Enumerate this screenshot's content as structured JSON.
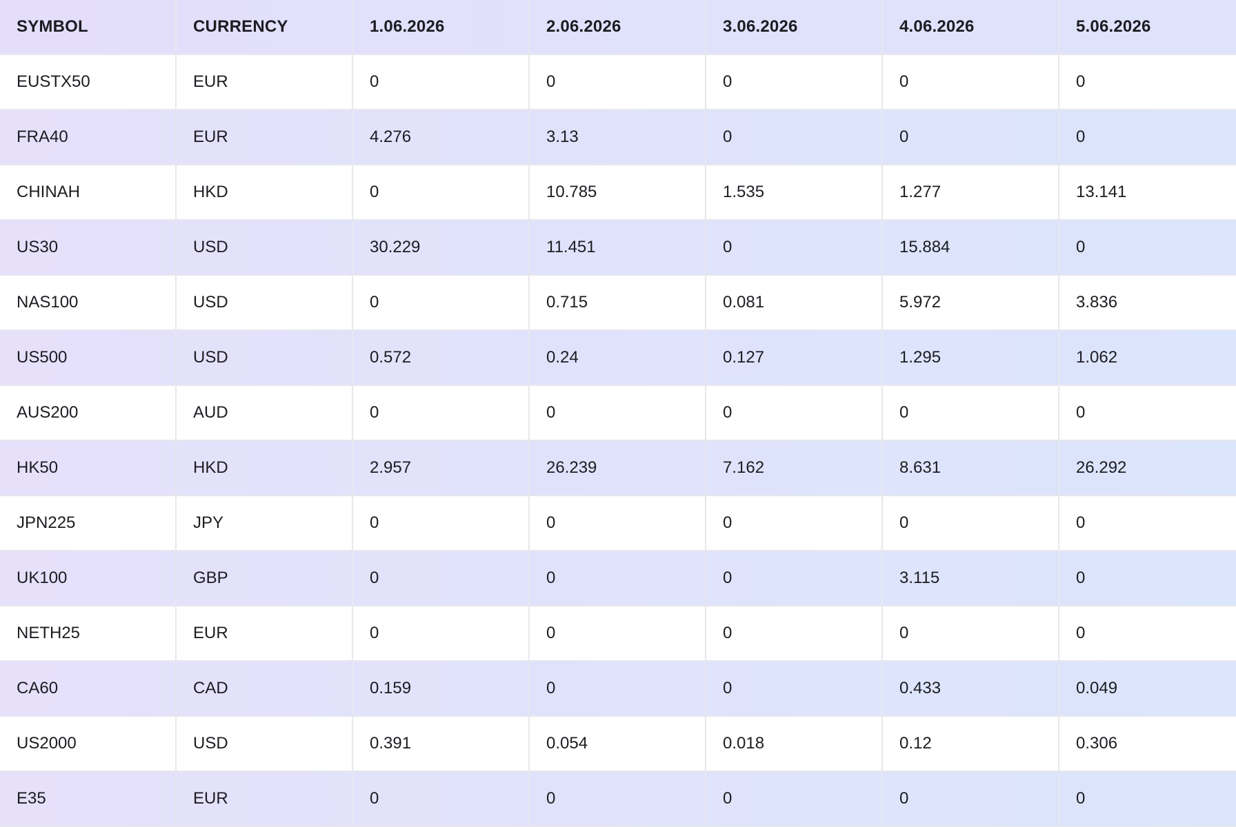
{
  "table": {
    "headers": [
      "SYMBOL",
      "CURRENCY",
      "1.06.2026",
      "2.06.2026",
      "3.06.2026",
      "4.06.2026",
      "5.06.2026"
    ],
    "rows": [
      [
        "EUSTX50",
        "EUR",
        "0",
        "0",
        "0",
        "0",
        "0"
      ],
      [
        "FRA40",
        "EUR",
        "4.276",
        "3.13",
        "0",
        "0",
        "0"
      ],
      [
        "CHINAH",
        "HKD",
        "0",
        "10.785",
        "1.535",
        "1.277",
        "13.141"
      ],
      [
        "US30",
        "USD",
        "30.229",
        "11.451",
        "0",
        "15.884",
        "0"
      ],
      [
        "NAS100",
        "USD",
        "0",
        "0.715",
        "0.081",
        "5.972",
        "3.836"
      ],
      [
        "US500",
        "USD",
        "0.572",
        "0.24",
        "0.127",
        "1.295",
        "1.062"
      ],
      [
        "AUS200",
        "AUD",
        "0",
        "0",
        "0",
        "0",
        "0"
      ],
      [
        "HK50",
        "HKD",
        "2.957",
        "26.239",
        "7.162",
        "8.631",
        "26.292"
      ],
      [
        "JPN225",
        "JPY",
        "0",
        "0",
        "0",
        "0",
        "0"
      ],
      [
        "UK100",
        "GBP",
        "0",
        "0",
        "0",
        "3.115",
        "0"
      ],
      [
        "NETH25",
        "EUR",
        "0",
        "0",
        "0",
        "0",
        "0"
      ],
      [
        "CA60",
        "CAD",
        "0.159",
        "0",
        "0",
        "0.433",
        "0.049"
      ],
      [
        "US2000",
        "USD",
        "0.391",
        "0.054",
        "0.018",
        "0.12",
        "0.306"
      ],
      [
        "E35",
        "EUR",
        "0",
        "0",
        "0",
        "0",
        "0"
      ]
    ]
  },
  "colors": {
    "band_left": "#e6e0fb",
    "band_right": "#dbe5fb",
    "plain": "#ffffff",
    "grid": "#e7e7ee",
    "text": "#1c1c22"
  }
}
